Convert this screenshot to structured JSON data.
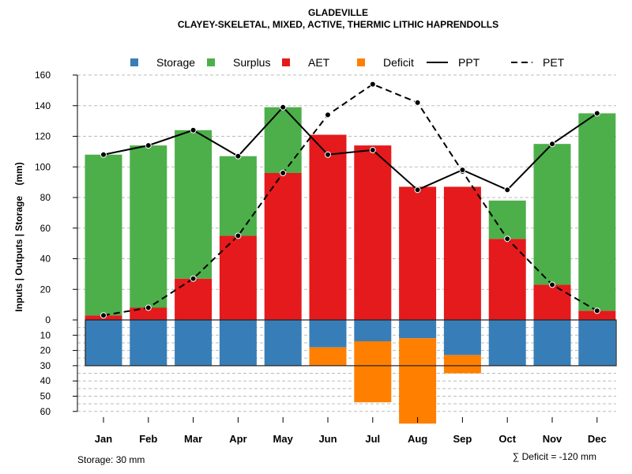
{
  "chart_data": {
    "type": "bar",
    "title": "GLADEVILLE",
    "subtitle": "CLAYEY-SKELETAL, MIXED, ACTIVE, THERMIC LITHIC HAPRENDOLLS",
    "ylabel": "Inputs | Outputs | Storage    (mm)",
    "xlabel": "",
    "ylim": [
      -60,
      160
    ],
    "yticks_upper": [
      0,
      20,
      40,
      60,
      80,
      100,
      120,
      140,
      160
    ],
    "yticks_lower": [
      10,
      20,
      30,
      40,
      50,
      60
    ],
    "grid": true,
    "legend_position": "top",
    "categories": [
      "Jan",
      "Feb",
      "Mar",
      "Apr",
      "May",
      "Jun",
      "Jul",
      "Aug",
      "Sep",
      "Oct",
      "Nov",
      "Dec"
    ],
    "legend": [
      {
        "name": "Storage",
        "kind": "box",
        "color": "#377EB8"
      },
      {
        "name": "Surplus",
        "kind": "box",
        "color": "#4DAF4A"
      },
      {
        "name": "AET",
        "kind": "box",
        "color": "#E41A1C"
      },
      {
        "name": "Deficit",
        "kind": "box",
        "color": "#FF7F00"
      },
      {
        "name": "PPT",
        "kind": "solid"
      },
      {
        "name": "PET",
        "kind": "dashed"
      }
    ],
    "series": [
      {
        "name": "AET",
        "values": [
          3,
          8,
          27,
          55,
          96,
          121,
          114,
          87,
          87,
          53,
          23,
          6
        ]
      },
      {
        "name": "Surplus",
        "values": [
          105,
          106,
          97,
          52,
          43,
          0,
          0,
          0,
          0,
          25,
          92,
          129
        ]
      },
      {
        "name": "Storage",
        "values": [
          30,
          30,
          30,
          30,
          30,
          18,
          14,
          12,
          23,
          30,
          30,
          30
        ]
      },
      {
        "name": "Deficit",
        "values": [
          0,
          0,
          0,
          0,
          0,
          12,
          40,
          56,
          12,
          0,
          0,
          0
        ]
      },
      {
        "name": "PPT",
        "values": [
          108,
          114,
          124,
          107,
          139,
          108,
          111,
          85,
          98,
          85,
          115,
          135
        ]
      },
      {
        "name": "PET",
        "values": [
          3,
          8,
          27,
          55,
          96,
          134,
          154,
          142,
          97,
          53,
          23,
          6
        ]
      }
    ],
    "storage_capacity": 30,
    "footer_left": "Storage: 30 mm",
    "footer_right": "∑ Deficit = -120 mm"
  }
}
